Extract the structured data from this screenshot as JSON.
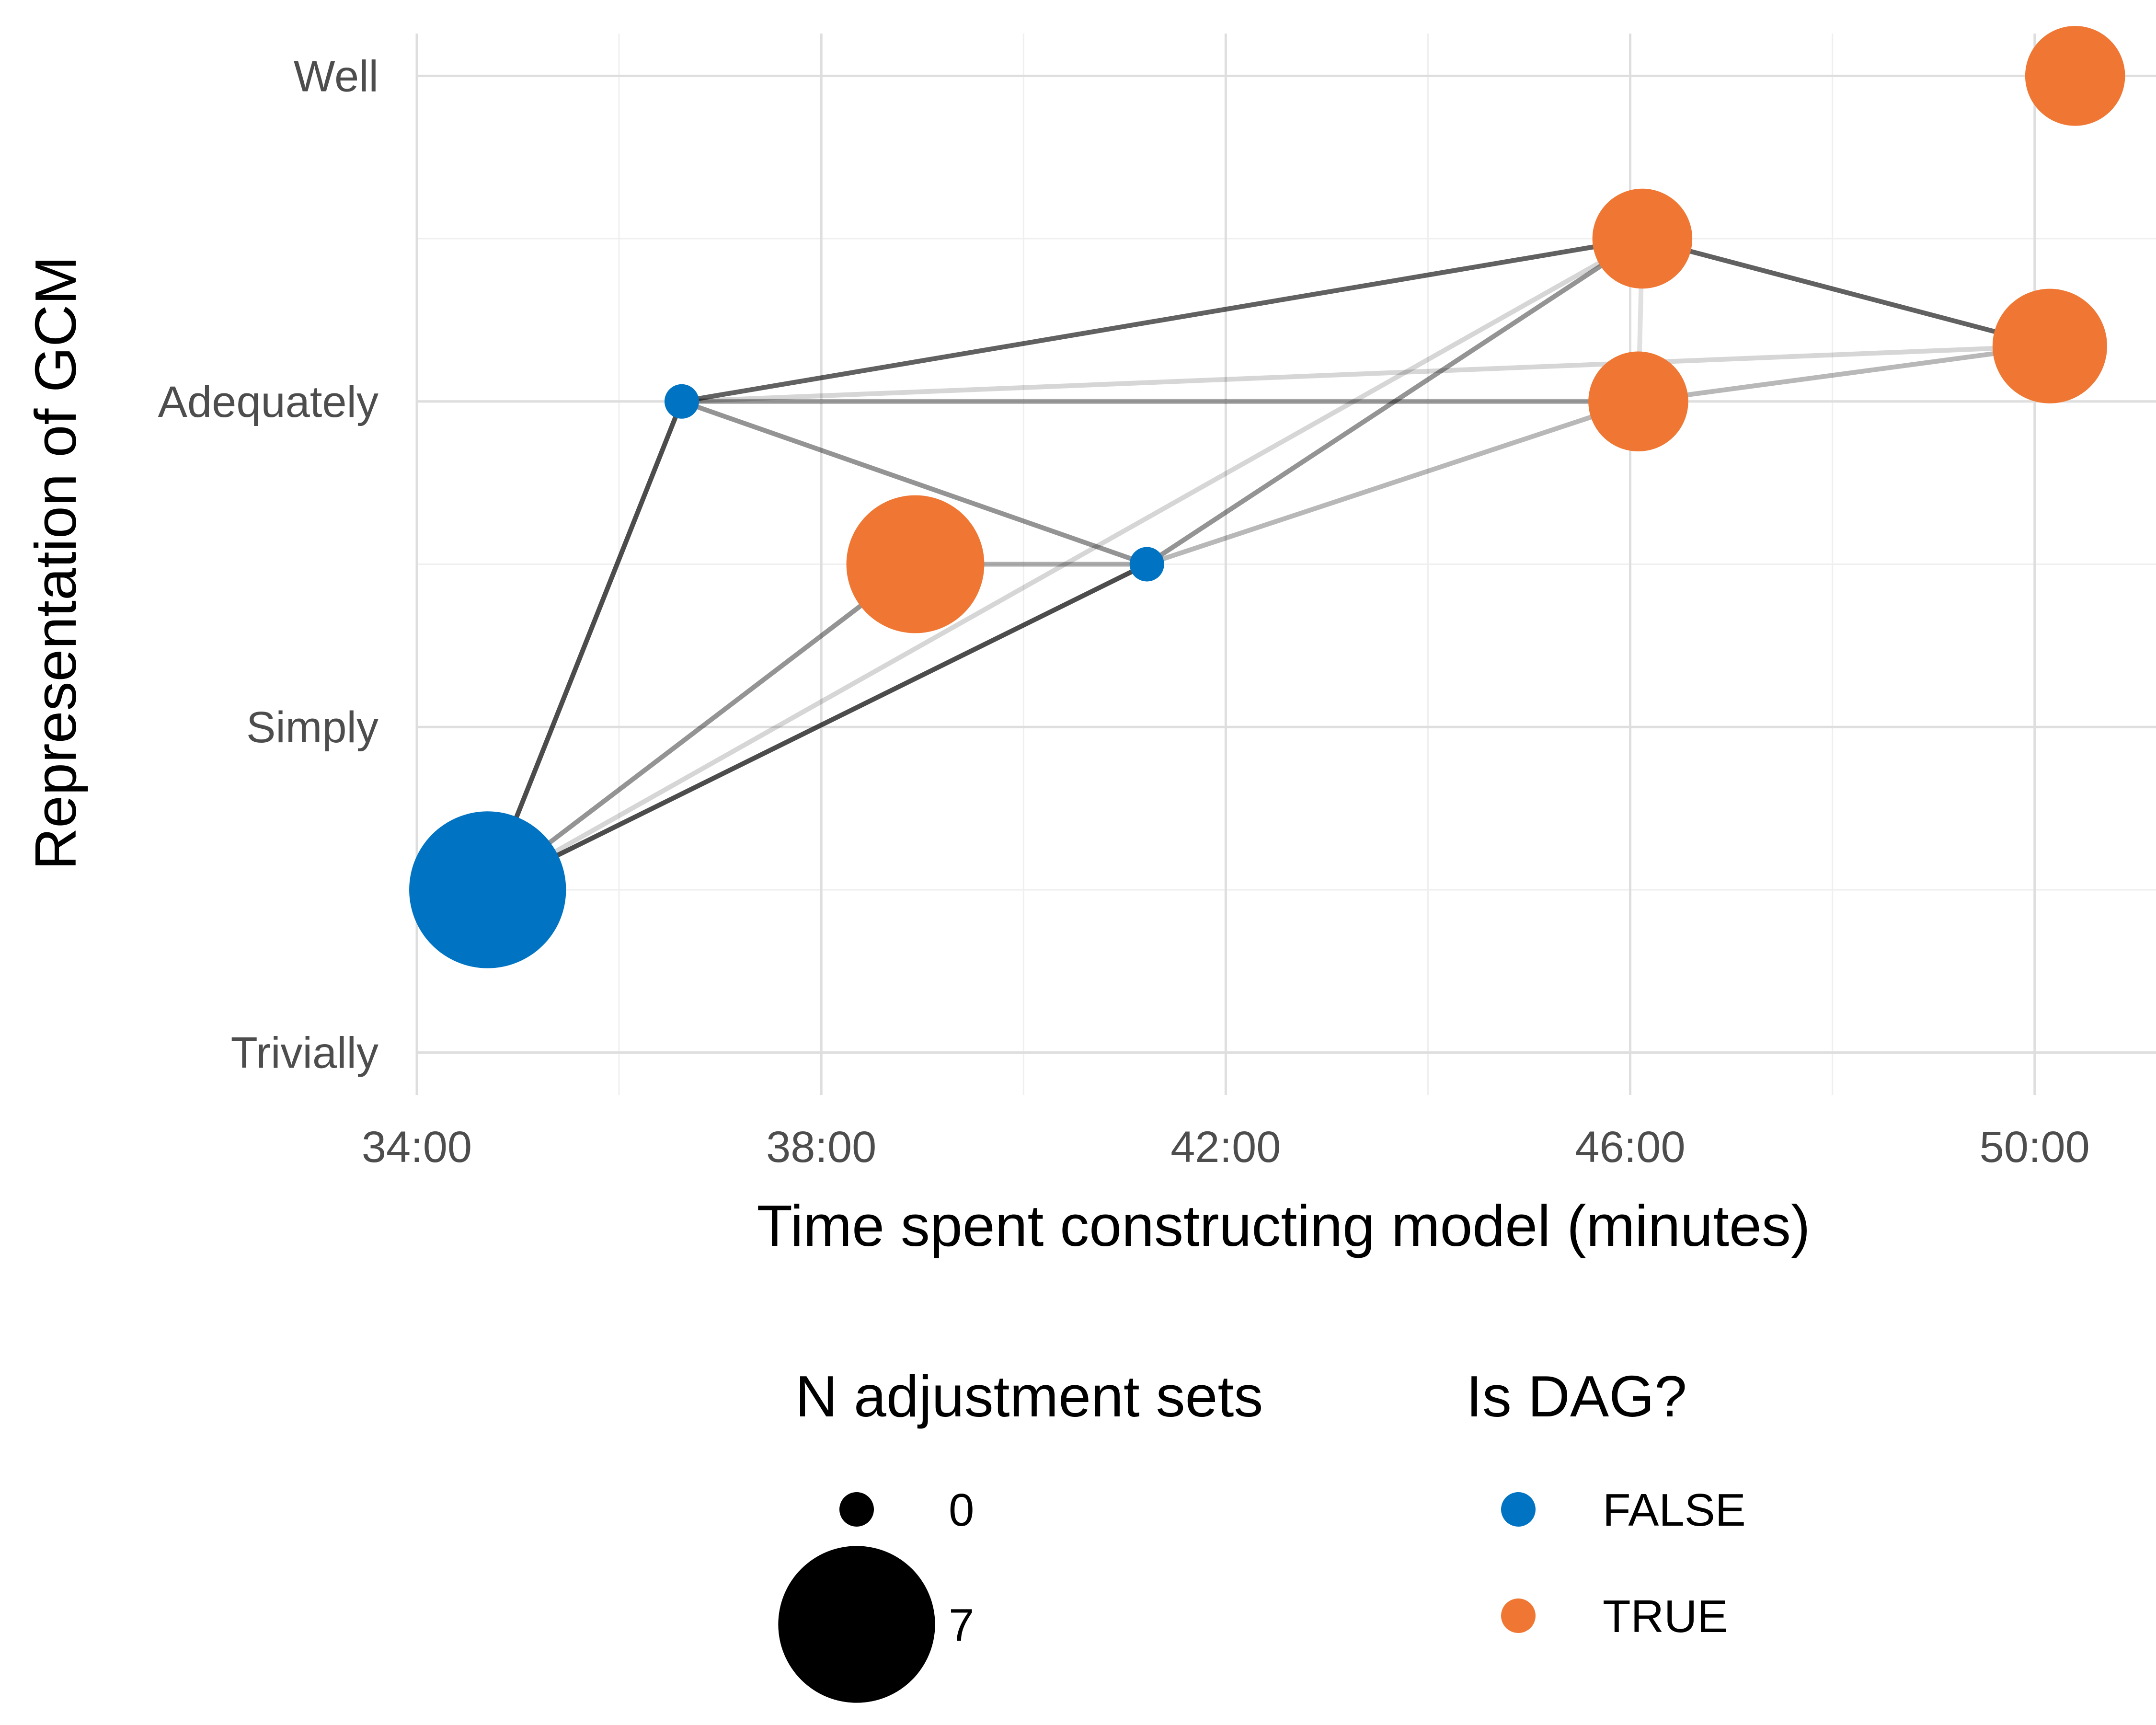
{
  "chart_data": {
    "type": "scatter",
    "xlabel": "Time spent constructing model (minutes)",
    "ylabel": "Representation of GCM",
    "x_unit": "minutes",
    "x_ticks": [
      {
        "value": 34,
        "label": "34:00"
      },
      {
        "value": 38,
        "label": "38:00"
      },
      {
        "value": 42,
        "label": "42:00"
      },
      {
        "value": 46,
        "label": "46:00"
      },
      {
        "value": 50,
        "label": "50:00"
      }
    ],
    "xlim": [
      34,
      51.2
    ],
    "y_levels": [
      "Trivially",
      "Simply",
      "Adequately",
      "Well"
    ],
    "ylim": [
      0.87,
      4.13
    ],
    "grid": true,
    "colors": {
      "FALSE": "#0073c2",
      "TRUE": "#ef7733"
    },
    "points": [
      {
        "x": 34.7,
        "y": 1.5,
        "n_adjustment_sets": 7,
        "is_dag": "FALSE"
      },
      {
        "x": 36.62,
        "y": 3.0,
        "n_adjustment_sets": 0,
        "is_dag": "FALSE"
      },
      {
        "x": 38.93,
        "y": 2.5,
        "n_adjustment_sets": 5,
        "is_dag": "TRUE"
      },
      {
        "x": 41.22,
        "y": 2.5,
        "n_adjustment_sets": 0,
        "is_dag": "FALSE"
      },
      {
        "x": 46.12,
        "y": 3.5,
        "n_adjustment_sets": 2,
        "is_dag": "TRUE"
      },
      {
        "x": 46.08,
        "y": 3.0,
        "n_adjustment_sets": 2,
        "is_dag": "TRUE"
      },
      {
        "x": 50.15,
        "y": 3.17,
        "n_adjustment_sets": 3,
        "is_dag": "TRUE"
      },
      {
        "x": 50.4,
        "y": 4.0,
        "n_adjustment_sets": 2,
        "is_dag": "TRUE"
      }
    ],
    "links": [
      {
        "from": 0,
        "to": 1,
        "opacity": 0.7
      },
      {
        "from": 1,
        "to": 4,
        "opacity": 0.62
      },
      {
        "from": 4,
        "to": 6,
        "opacity": 0.62
      },
      {
        "from": 1,
        "to": 5,
        "opacity": 0.35
      },
      {
        "from": 1,
        "to": 6,
        "opacity": 0.16
      },
      {
        "from": 1,
        "to": 3,
        "opacity": 0.42
      },
      {
        "from": 2,
        "to": 3,
        "opacity": 0.32
      },
      {
        "from": 0,
        "to": 3,
        "opacity": 0.7
      },
      {
        "from": 3,
        "to": 4,
        "opacity": 0.42
      },
      {
        "from": 3,
        "to": 5,
        "opacity": 0.28
      },
      {
        "from": 0,
        "to": 2,
        "opacity": 0.42
      },
      {
        "from": 0,
        "to": 4,
        "opacity": 0.16
      },
      {
        "from": 5,
        "to": 6,
        "opacity": 0.28
      },
      {
        "from": 4,
        "to": 5,
        "opacity": 0.12
      }
    ],
    "legend": {
      "placement": "bottom",
      "size_title": "N adjustment sets",
      "size_entries": [
        {
          "label": "0",
          "value": 0
        },
        {
          "label": "7",
          "value": 7
        }
      ],
      "color_title": "Is DAG?",
      "color_entries": [
        {
          "label": "FALSE"
        },
        {
          "label": "TRUE"
        }
      ]
    }
  }
}
